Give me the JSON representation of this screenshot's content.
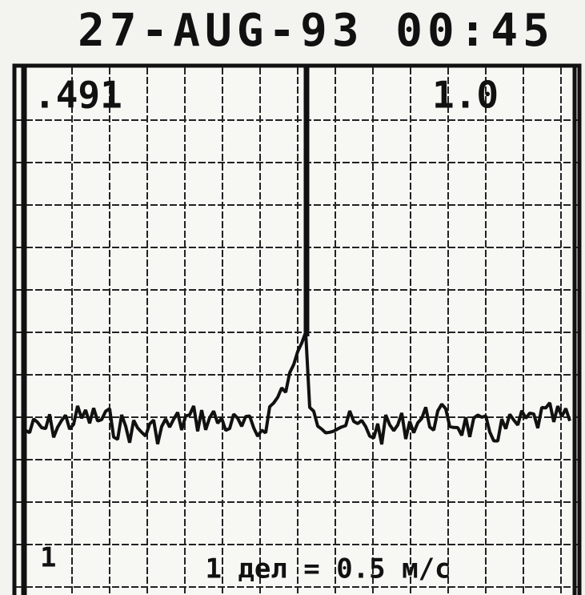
{
  "header": {
    "timestamp": "27-AUG-93 00:45"
  },
  "display": {
    "top_left": ".491",
    "top_right": "1.0",
    "bottom_left": "1",
    "scale": "1 дел = 0.5 м/с"
  }
}
